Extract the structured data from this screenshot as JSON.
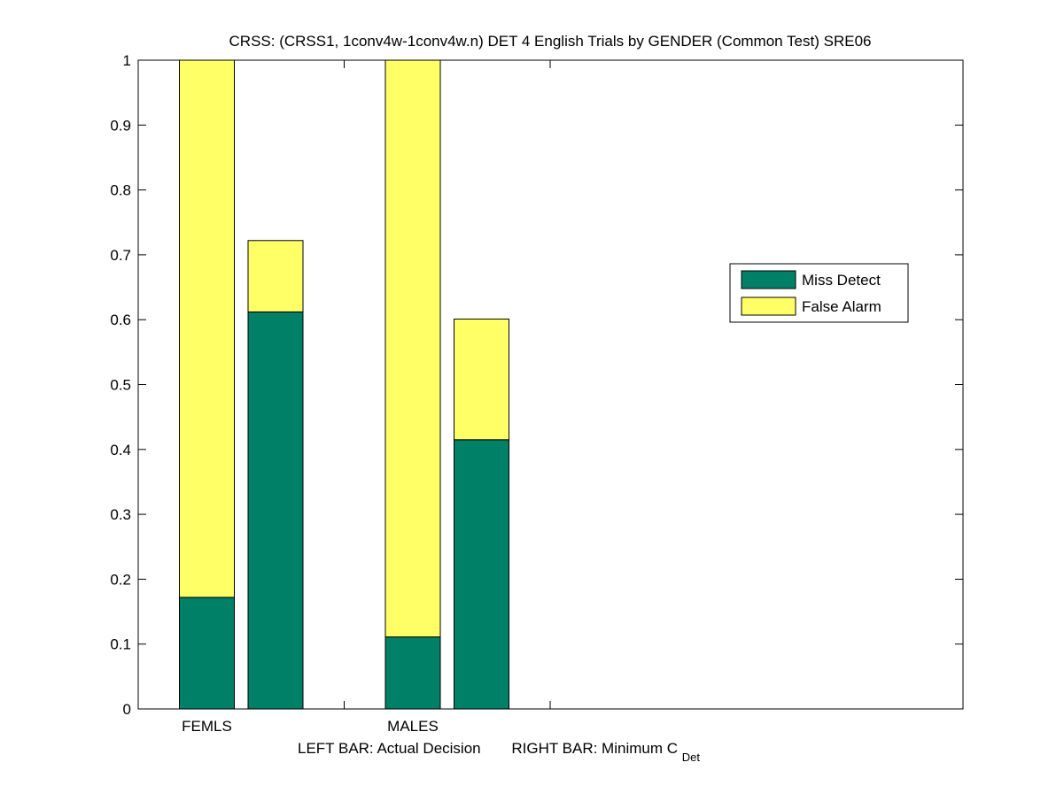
{
  "chart_data": {
    "type": "bar",
    "stacked": true,
    "title": "CRSS: (CRSS1, 1conv4w-1conv4w.n) DET 4 English Trials by GENDER (Common Test) SRE06",
    "categories": [
      "FEMLS",
      "MALES"
    ],
    "bars_per_category": [
      "Actual Decision",
      "Minimum C_Det"
    ],
    "xlabel": {
      "left_bar": "LEFT BAR: Actual Decision",
      "right_bar_prefix": "RIGHT BAR: Minimum C",
      "right_bar_subscript": "Det"
    },
    "ylim": [
      0,
      1
    ],
    "yticks": [
      "0",
      "0.1",
      "0.2",
      "0.3",
      "0.4",
      "0.5",
      "0.6",
      "0.7",
      "0.8",
      "0.9",
      "1"
    ],
    "series": [
      {
        "name": "Miss Detect",
        "color": "#008066",
        "values": [
          [
            0.172,
            0.612
          ],
          [
            0.111,
            0.415
          ]
        ]
      },
      {
        "name": "False Alarm",
        "color": "#ffff66",
        "values": [
          [
            0.828,
            0.11
          ],
          [
            0.889,
            0.186
          ]
        ]
      }
    ],
    "legend_placement": "right-middle",
    "grid": false
  }
}
